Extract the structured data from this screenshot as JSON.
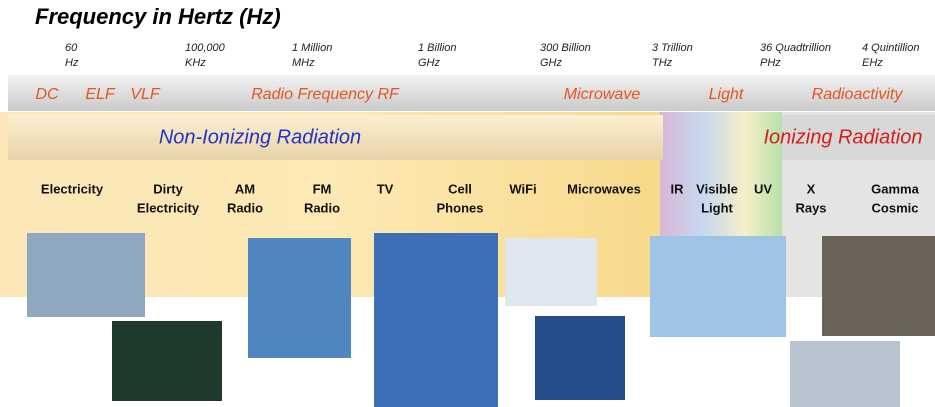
{
  "title": "Frequency in Hertz (Hz)",
  "frequency_marks": [
    {
      "value": "60",
      "unit": "Hz"
    },
    {
      "value": "100,000",
      "unit": "KHz"
    },
    {
      "value": "1 Million",
      "unit": "MHz"
    },
    {
      "value": "1 Billion",
      "unit": "GHz"
    },
    {
      "value": "300 Billion",
      "unit": "GHz"
    },
    {
      "value": "3 Trillion",
      "unit": "THz"
    },
    {
      "value": "36 Quadtrillion",
      "unit": "PHz"
    },
    {
      "value": "4 Quintillion",
      "unit": "EHz"
    }
  ],
  "bands": [
    "DC",
    "ELF",
    "VLF",
    "Radio Frequency RF",
    "Microwave",
    "Light",
    "Radioactivity"
  ],
  "radiation": [
    "Non-Ionizing Radiation",
    "Ionizing Radiation"
  ],
  "sources": [
    [
      "Electricity"
    ],
    [
      "Dirty",
      "Electricity"
    ],
    [
      "AM",
      "Radio"
    ],
    [
      "FM",
      "Radio"
    ],
    [
      "TV"
    ],
    [
      "Cell",
      "Phones"
    ],
    [
      "WiFi"
    ],
    [
      "Microwaves"
    ],
    [
      "IR"
    ],
    [
      "Visible",
      "Light"
    ],
    [
      "UV"
    ],
    [
      "X",
      "Rays"
    ],
    [
      "Gamma",
      "Cosmic"
    ]
  ]
}
